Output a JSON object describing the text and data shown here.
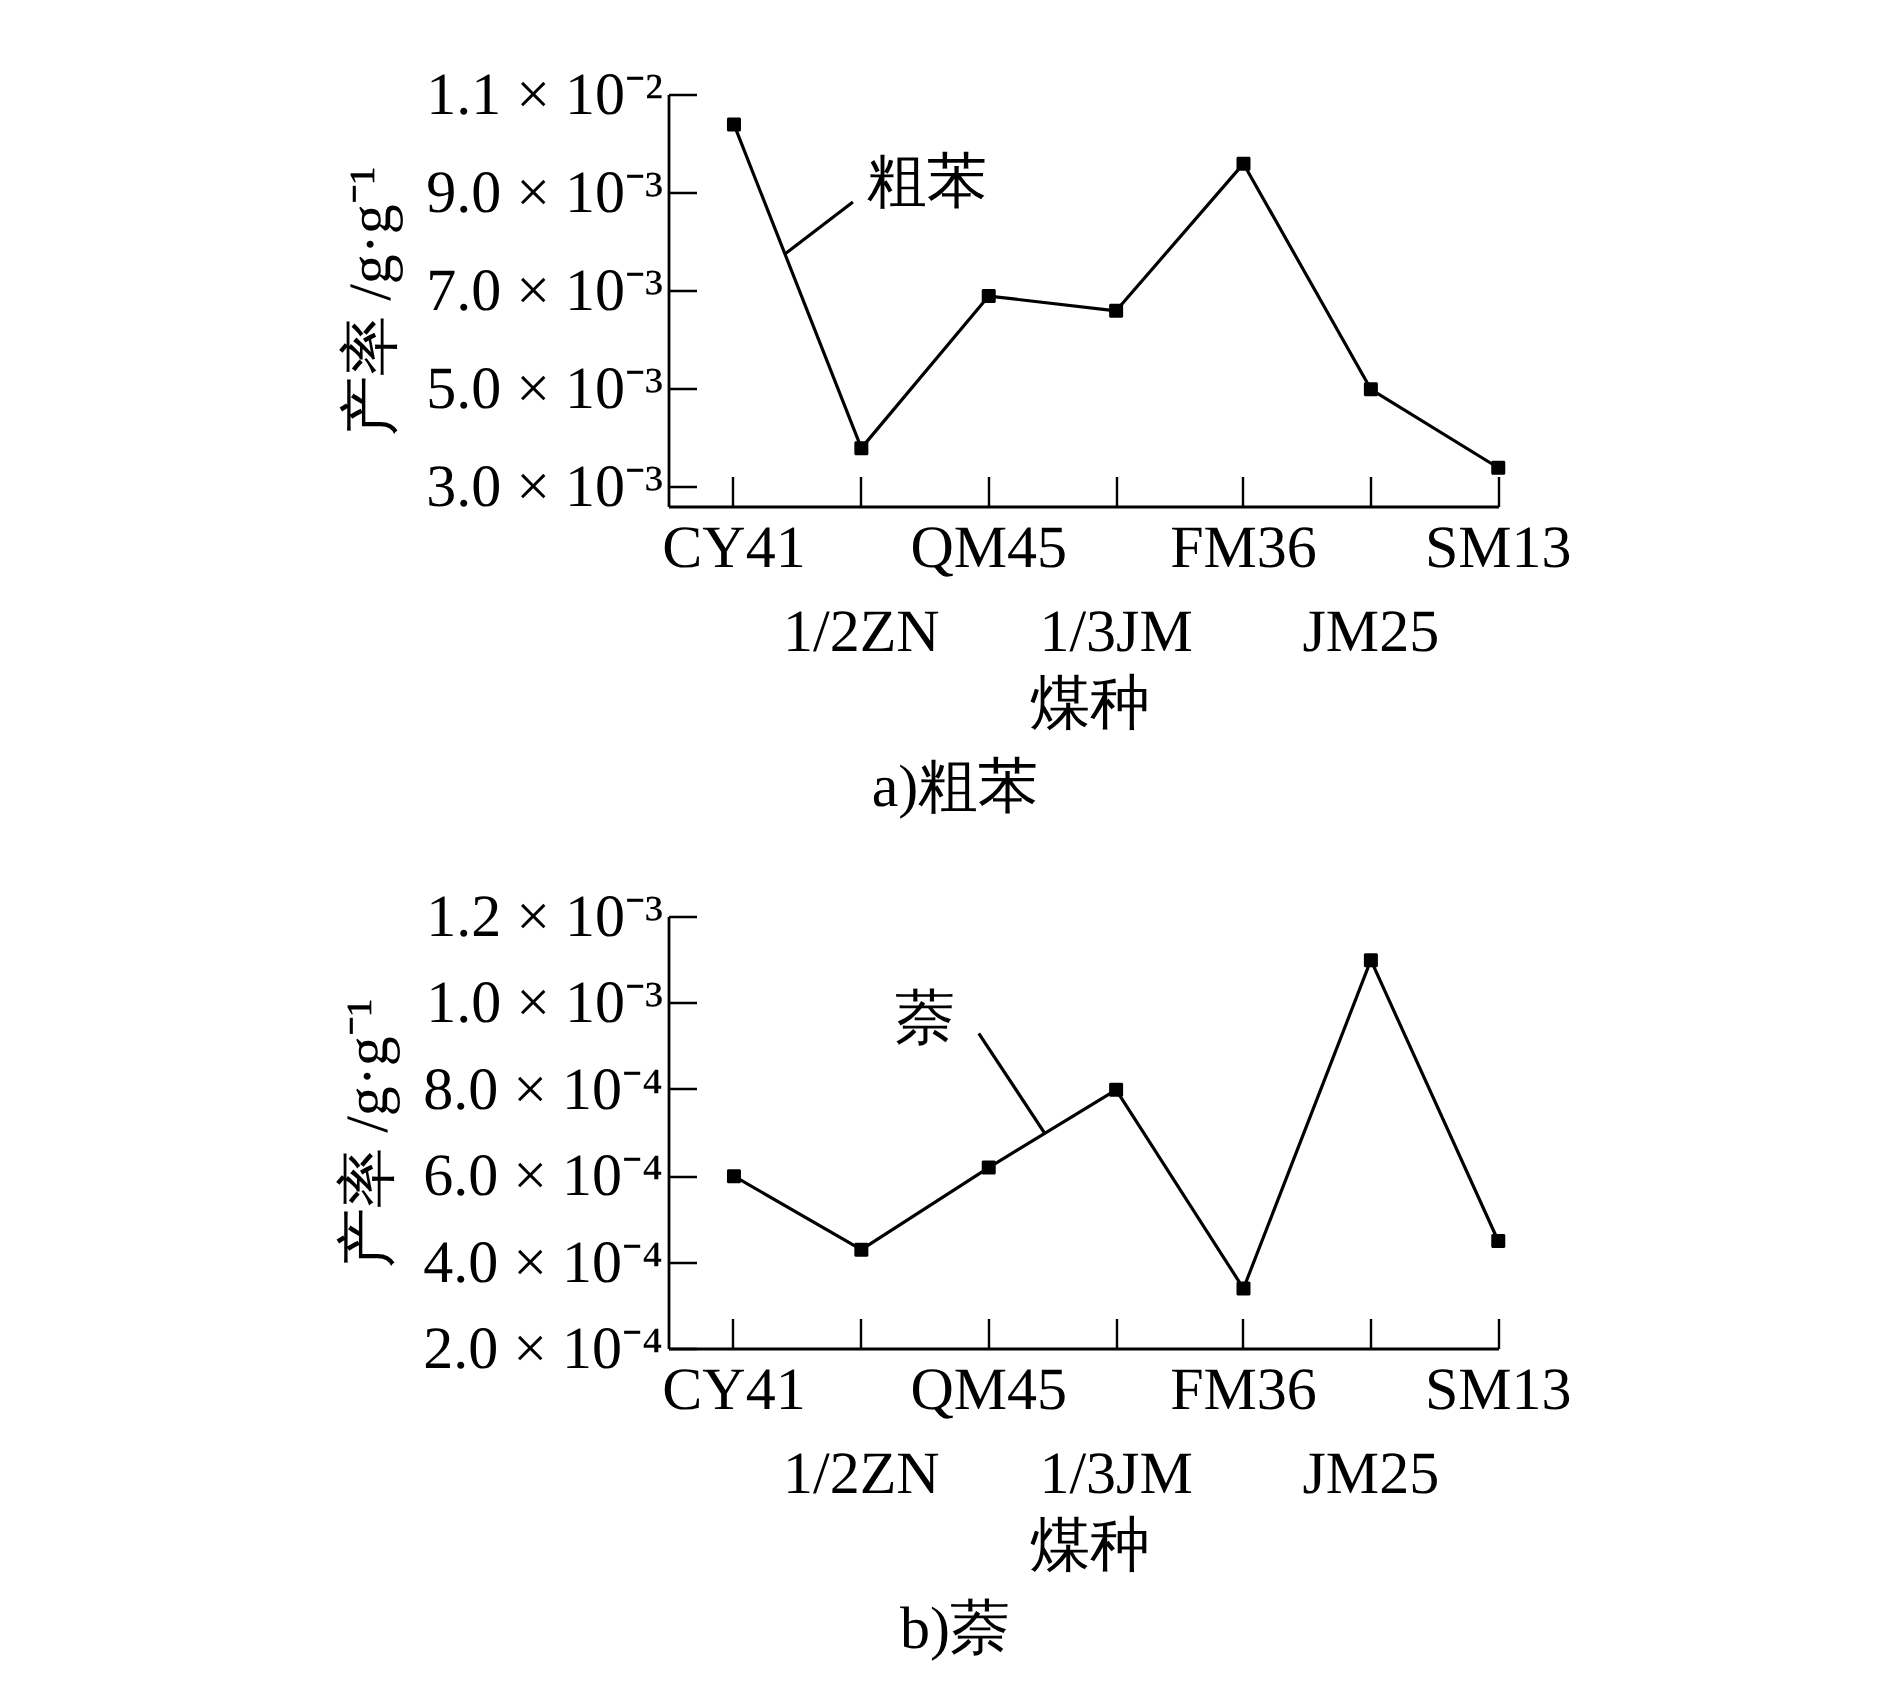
{
  "chart_data": [
    {
      "type": "line",
      "title": "a)粗苯",
      "xlabel": "煤种",
      "ylabel": "产率 /g·g⁻¹",
      "categories": [
        "CY41",
        "1/2ZN",
        "QM45",
        "1/3JM",
        "FM36",
        "JM25",
        "SM13"
      ],
      "series": [
        {
          "name": "粗苯",
          "color": "#000000",
          "values": [
            0.0104,
            0.0038,
            0.0069,
            0.0066,
            0.0096,
            0.005,
            0.0034
          ]
        }
      ],
      "ylim": [
        0.0026,
        0.011
      ],
      "yticks": [
        {
          "value": 0.003,
          "label": "3.0 × 10⁻³"
        },
        {
          "value": 0.005,
          "label": "5.0 × 10⁻³"
        },
        {
          "value": 0.007,
          "label": "7.0 × 10⁻³"
        },
        {
          "value": 0.009,
          "label": "9.0 × 10⁻³"
        },
        {
          "value": 0.011,
          "label": "1.1 × 10⁻²"
        }
      ],
      "marker": "square",
      "line_style": "solid"
    },
    {
      "type": "line",
      "title": "b)萘",
      "xlabel": "煤种",
      "ylabel": "产率 /g·g⁻¹",
      "categories": [
        "CY41",
        "1/2ZN",
        "QM45",
        "1/3JM",
        "FM36",
        "JM25",
        "SM13"
      ],
      "series": [
        {
          "name": "萘",
          "color": "#000000",
          "values": [
            0.0006,
            0.00043,
            0.00062,
            0.0008,
            0.00034,
            0.0011,
            0.00045
          ]
        }
      ],
      "ylim": [
        0.0002,
        0.0012
      ],
      "yticks": [
        {
          "value": 0.0002,
          "label": "2.0 × 10⁻⁴"
        },
        {
          "value": 0.0004,
          "label": "4.0 × 10⁻⁴"
        },
        {
          "value": 0.0006,
          "label": "6.0 × 10⁻⁴"
        },
        {
          "value": 0.0008,
          "label": "8.0 × 10⁻⁴"
        },
        {
          "value": 0.001,
          "label": "1.0 × 10⁻³"
        },
        {
          "value": 0.0012,
          "label": "1.2 × 10⁻³"
        }
      ],
      "marker": "square",
      "line_style": "solid"
    }
  ]
}
